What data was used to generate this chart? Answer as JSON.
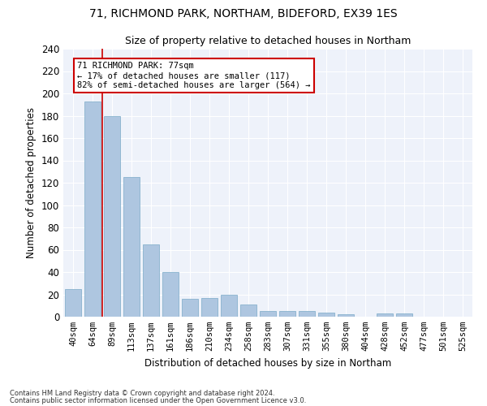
{
  "title1": "71, RICHMOND PARK, NORTHAM, BIDEFORD, EX39 1ES",
  "title2": "Size of property relative to detached houses in Northam",
  "xlabel": "Distribution of detached houses by size in Northam",
  "ylabel": "Number of detached properties",
  "categories": [
    "40sqm",
    "64sqm",
    "89sqm",
    "113sqm",
    "137sqm",
    "161sqm",
    "186sqm",
    "210sqm",
    "234sqm",
    "258sqm",
    "283sqm",
    "307sqm",
    "331sqm",
    "355sqm",
    "380sqm",
    "404sqm",
    "428sqm",
    "452sqm",
    "477sqm",
    "501sqm",
    "525sqm"
  ],
  "values": [
    25,
    193,
    180,
    125,
    65,
    40,
    16,
    17,
    20,
    11,
    5,
    5,
    5,
    4,
    2,
    0,
    3,
    3,
    0,
    0,
    0
  ],
  "bar_color": "#aec6e0",
  "bar_edge_color": "#7aaac8",
  "vline_x": 1.5,
  "vline_color": "#cc0000",
  "annotation_text": "71 RICHMOND PARK: 77sqm\n← 17% of detached houses are smaller (117)\n82% of semi-detached houses are larger (564) →",
  "annotation_box_color": "#ffffff",
  "annotation_box_edge": "#cc0000",
  "footnote1": "Contains HM Land Registry data © Crown copyright and database right 2024.",
  "footnote2": "Contains public sector information licensed under the Open Government Licence v3.0.",
  "background_color": "#eef2fa",
  "ylim": [
    0,
    240
  ],
  "yticks": [
    0,
    20,
    40,
    60,
    80,
    100,
    120,
    140,
    160,
    180,
    200,
    220,
    240
  ]
}
